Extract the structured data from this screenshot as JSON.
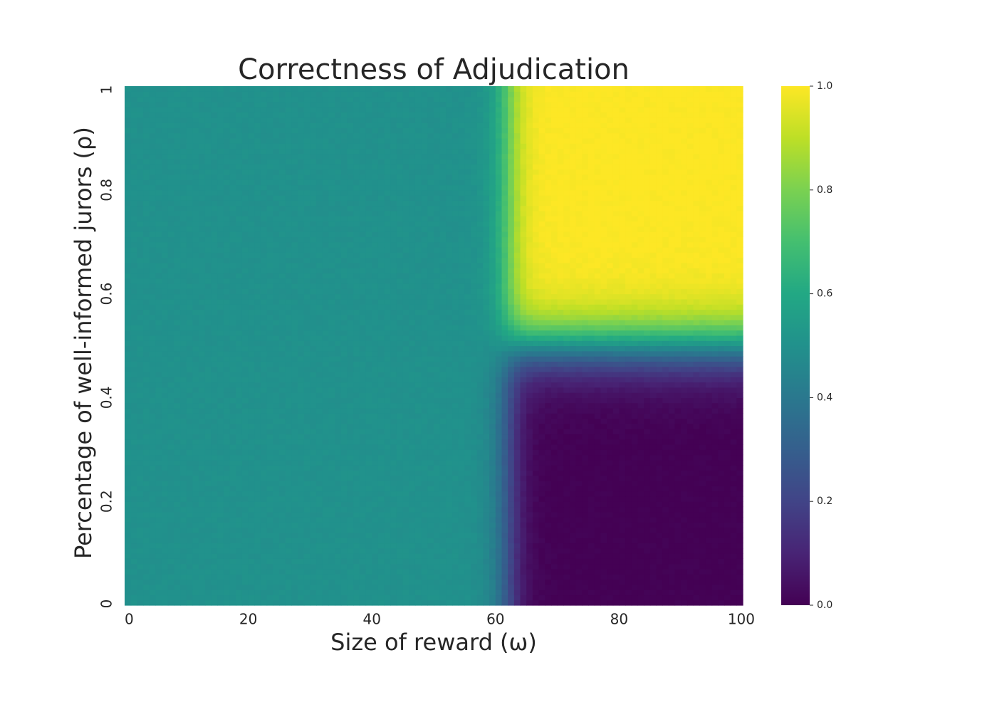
{
  "chart_data": {
    "type": "heatmap",
    "title": "Correctness of Adjudication",
    "xlabel": "Size of reward (ω)",
    "ylabel": "Percentage of well-informed jurors (ρ)",
    "xlim": [
      0,
      100
    ],
    "ylim": [
      0,
      1
    ],
    "x_tick_labels": [
      "0",
      "20",
      "40",
      "60",
      "80",
      "100"
    ],
    "x_tick_values": [
      0,
      20,
      40,
      60,
      80,
      100
    ],
    "y_tick_labels": [
      "0",
      "0.2",
      "0.4",
      "0.6",
      "0.8",
      "1"
    ],
    "y_tick_values": [
      0,
      0.2,
      0.4,
      0.6,
      0.8,
      1
    ],
    "colormap": "viridis",
    "colorbar": {
      "range": [
        0,
        1
      ],
      "tick_labels": [
        "0.0",
        "0.2",
        "0.4",
        "0.6",
        "0.8",
        "1.0"
      ],
      "tick_values": [
        0,
        0.2,
        0.4,
        0.6,
        0.8,
        1.0
      ]
    },
    "grid_resolution": {
      "x_cells": 100,
      "y_cells": 100
    },
    "regions": [
      {
        "omega_range": [
          0,
          60
        ],
        "rho_range": [
          0,
          1
        ],
        "value": 0.5
      },
      {
        "omega_range": [
          65,
          100
        ],
        "rho_range": [
          0.6,
          1
        ],
        "value": 1.0
      },
      {
        "omega_range": [
          65,
          100
        ],
        "rho_range": [
          0,
          0.45
        ],
        "value": 0.0
      },
      {
        "omega_range": [
          65,
          100
        ],
        "rho_range": [
          0.45,
          0.6
        ],
        "value": 0.5
      }
    ],
    "transition": {
      "omega_threshold": 62,
      "rho_threshold": 0.5
    },
    "grid": false
  }
}
